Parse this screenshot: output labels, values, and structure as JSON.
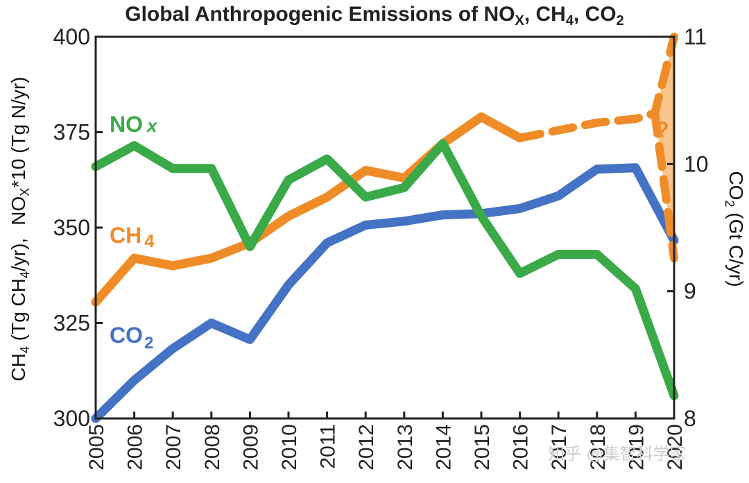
{
  "watermark": "知乎 @集智科学家",
  "chart_data": {
    "type": "line",
    "title": {
      "text": "Global Anthropogenic Emissions of NO",
      "parts": [
        "X",
        ", CH",
        "4",
        ", CO",
        "2"
      ]
    },
    "x": [
      "2005",
      "2006",
      "2007",
      "2008",
      "2009",
      "2010",
      "2011",
      "2012",
      "2013",
      "2014",
      "2015",
      "2016",
      "2017",
      "2018",
      "2019",
      "2020"
    ],
    "left_axis": {
      "ylim": [
        300,
        400
      ],
      "ticks": [
        "300",
        "325",
        "350",
        "375",
        "400"
      ],
      "label_ch4": {
        "a": "CH",
        "b": "4",
        "c": " (Tg CH",
        "d": "4",
        "e": "/yr),"
      },
      "label_nox": {
        "a": "NO",
        "b": "X",
        "c": "*10 (Tg N/yr)"
      }
    },
    "right_axis": {
      "ylim": [
        8,
        11
      ],
      "ticks": [
        "8",
        "9",
        "10",
        "11"
      ],
      "label": {
        "a": "CO",
        "b": "2",
        "c": " (Gt C/yr)"
      }
    },
    "series": [
      {
        "name": "NOx",
        "label_main": "NO",
        "label_sub": "x",
        "axis": "left",
        "color": "#3aaa48",
        "points": [
          [
            2005,
            366
          ],
          [
            2006,
            371.5
          ],
          [
            2007,
            365.5
          ],
          [
            2008,
            365.5
          ],
          [
            2009,
            345
          ],
          [
            2010,
            362.5
          ],
          [
            2011,
            368
          ],
          [
            2012,
            358
          ],
          [
            2013,
            360.5
          ],
          [
            2014,
            372
          ],
          [
            2015,
            353
          ],
          [
            2016,
            338
          ],
          [
            2017,
            343
          ],
          [
            2018,
            343
          ],
          [
            2019,
            334
          ],
          [
            2020,
            306
          ]
        ]
      },
      {
        "name": "CH4",
        "label_main": "CH",
        "label_sub": "4",
        "axis": "left",
        "color": "#f08c28",
        "points": [
          [
            2005,
            330.5
          ],
          [
            2006,
            342
          ],
          [
            2007,
            340
          ],
          [
            2008,
            342
          ],
          [
            2009,
            346
          ],
          [
            2010,
            353
          ],
          [
            2011,
            358
          ],
          [
            2012,
            365
          ],
          [
            2013,
            363
          ],
          [
            2014,
            372
          ],
          [
            2015,
            379
          ],
          [
            2016,
            373.5
          ]
        ],
        "dashed_points": [
          [
            2016,
            373.5
          ],
          [
            2017,
            375.5
          ],
          [
            2018,
            377.5
          ],
          [
            2019,
            378.5
          ],
          [
            2019.5,
            380
          ],
          [
            2020,
            400
          ]
        ],
        "dashed_low_points": [
          [
            2019.5,
            380
          ],
          [
            2020,
            342
          ]
        ]
      },
      {
        "name": "CO2",
        "label_main": "CO",
        "label_sub": "2",
        "axis": "right",
        "color": "#4472c4",
        "points": [
          [
            2005,
            8.0
          ],
          [
            2006,
            8.3
          ],
          [
            2007,
            8.55
          ],
          [
            2008,
            8.75
          ],
          [
            2009,
            8.62
          ],
          [
            2010,
            9.05
          ],
          [
            2011,
            9.38
          ],
          [
            2012,
            9.52
          ],
          [
            2013,
            9.55
          ],
          [
            2014,
            9.6
          ],
          [
            2015,
            9.61
          ],
          [
            2016,
            9.65
          ],
          [
            2017,
            9.75
          ],
          [
            2018,
            9.96
          ],
          [
            2019,
            9.97
          ],
          [
            2020,
            9.4
          ]
        ]
      }
    ],
    "uncertainty_region": {
      "color": "#f8c48a",
      "label": "?"
    },
    "grid": false
  }
}
